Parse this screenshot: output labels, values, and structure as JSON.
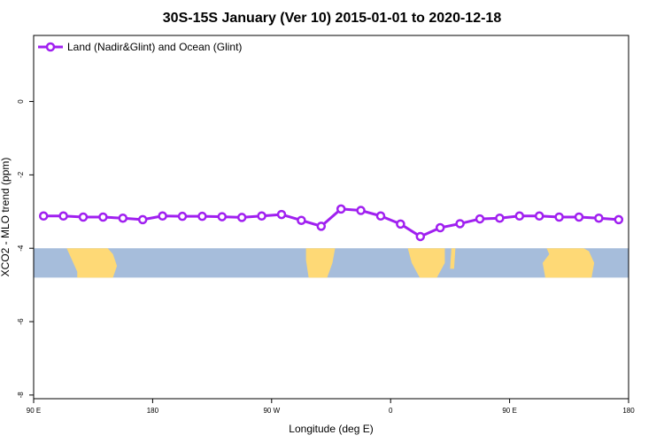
{
  "chart_data": {
    "type": "line",
    "title": "30S-15S January (Ver 10)   2015-01-01 to 2020-12-18",
    "xlabel": "Longitude (deg E)",
    "ylabel": "XCO2 - MLO trend (ppm)",
    "xlim": [
      90,
      540
    ],
    "ylim": [
      -8.1,
      1.8
    ],
    "x_ticks": [
      {
        "value": 90,
        "label": "90 E"
      },
      {
        "value": 180,
        "label": "180"
      },
      {
        "value": 270,
        "label": "90 W"
      },
      {
        "value": 360,
        "label": "0"
      },
      {
        "value": 450,
        "label": "90 E"
      },
      {
        "value": 540,
        "label": "180"
      }
    ],
    "y_ticks": [
      {
        "value": 0,
        "label": "0"
      },
      {
        "value": -2,
        "label": "-2"
      },
      {
        "value": -4,
        "label": "-4"
      },
      {
        "value": -6,
        "label": "-6"
      },
      {
        "value": -8,
        "label": "-8"
      }
    ],
    "legend_position": "top-left",
    "map_band": {
      "y_top": -4.0,
      "y_bottom": -4.8,
      "ocean_color": "#a6bddb",
      "land_color": "#fed976"
    },
    "series": [
      {
        "name": "Land (Nadir&Glint) and Ocean (Glint)",
        "color": "#a020f0",
        "x": [
          97.5,
          112.5,
          127.5,
          142.5,
          157.5,
          172.5,
          187.5,
          202.5,
          217.5,
          232.5,
          247.5,
          262.5,
          277.5,
          292.5,
          307.5,
          322.5,
          337.5,
          352.5,
          367.5,
          382.5,
          397.5,
          412.5,
          427.5,
          442.5,
          457.5,
          472.5,
          487.5,
          502.5,
          517.5,
          532.5
        ],
        "values": [
          -3.12,
          -3.12,
          -3.15,
          -3.15,
          -3.18,
          -3.22,
          -3.12,
          -3.13,
          -3.13,
          -3.14,
          -3.16,
          -3.12,
          -3.08,
          -3.24,
          -3.4,
          -2.93,
          -2.97,
          -3.12,
          -3.34,
          -3.68,
          -3.44,
          -3.33,
          -3.2,
          -3.18,
          -3.12,
          -3.12,
          -3.15,
          -3.15,
          -3.18,
          -3.22
        ]
      }
    ]
  }
}
